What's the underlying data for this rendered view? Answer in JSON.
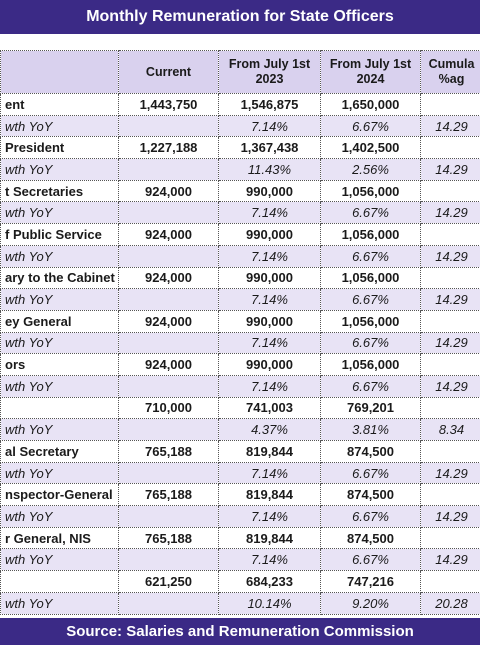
{
  "header": {
    "title": "Monthly Remuneration for State Officers"
  },
  "table": {
    "columns": [
      null,
      "Current",
      "From July 1st\n2023",
      "From July 1st\n2024",
      "Cumula\n%ag"
    ],
    "rows": [
      [
        "ent",
        "1,443,750",
        "1,546,875",
        "1,650,000",
        null
      ],
      [
        "wth YoY",
        null,
        "7.14%",
        "6.67%",
        "14.29"
      ],
      [
        "President",
        "1,227,188",
        "1,367,438",
        "1,402,500",
        null
      ],
      [
        "wth YoY",
        null,
        "11.43%",
        "2.56%",
        "14.29"
      ],
      [
        "t Secretaries",
        "924,000",
        "990,000",
        "1,056,000",
        null
      ],
      [
        "wth YoY",
        null,
        "7.14%",
        "6.67%",
        "14.29"
      ],
      [
        "f Public Service",
        "924,000",
        "990,000",
        "1,056,000",
        null
      ],
      [
        "wth YoY",
        null,
        "7.14%",
        "6.67%",
        "14.29"
      ],
      [
        "ary to the Cabinet",
        "924,000",
        "990,000",
        "1,056,000",
        null
      ],
      [
        "wth YoY",
        null,
        "7.14%",
        "6.67%",
        "14.29"
      ],
      [
        "ey General",
        "924,000",
        "990,000",
        "1,056,000",
        null
      ],
      [
        "wth YoY",
        null,
        "7.14%",
        "6.67%",
        "14.29"
      ],
      [
        "ors",
        "924,000",
        "990,000",
        "1,056,000",
        null
      ],
      [
        "wth YoY",
        null,
        "7.14%",
        "6.67%",
        "14.29"
      ],
      [
        null,
        "710,000",
        "741,003",
        "769,201",
        null
      ],
      [
        "wth YoY",
        null,
        "4.37%",
        "3.81%",
        "8.34"
      ],
      [
        "al Secretary",
        "765,188",
        "819,844",
        "874,500",
        null
      ],
      [
        "wth YoY",
        null,
        "7.14%",
        "6.67%",
        "14.29"
      ],
      [
        "nspector-General",
        "765,188",
        "819,844",
        "874,500",
        null
      ],
      [
        "wth YoY",
        null,
        "7.14%",
        "6.67%",
        "14.29"
      ],
      [
        "r General, NIS",
        "765,188",
        "819,844",
        "874,500",
        null
      ],
      [
        "wth YoY",
        null,
        "7.14%",
        "6.67%",
        "14.29"
      ],
      [
        null,
        "621,250",
        "684,233",
        "747,216",
        null
      ],
      [
        "wth YoY",
        null,
        "10.14%",
        "9.20%",
        "20.28"
      ]
    ]
  },
  "footer": {
    "source": "Source: Salaries and Remuneration Commission"
  }
}
